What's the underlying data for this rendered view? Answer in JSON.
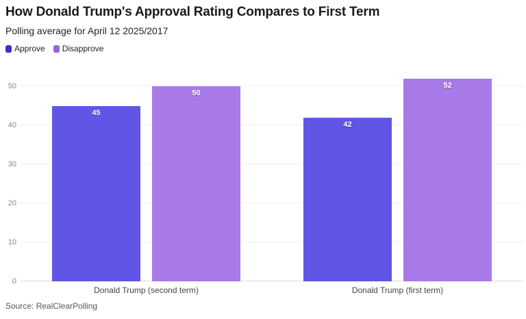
{
  "header": {
    "title": "How Donald Trump's Approval Rating Compares to First Term",
    "subtitle": "Polling average for April 12 2025/2017"
  },
  "legend": {
    "items": [
      {
        "label": "Approve",
        "swatch_color": "#3e2cc9"
      },
      {
        "label": "Disapprove",
        "swatch_color": "#9663de"
      }
    ]
  },
  "chart_data": {
    "type": "bar",
    "title": "How Donald Trump's Approval Rating Compares to First Term",
    "subtitle": "Polling average for April 12 2025/2017",
    "categories": [
      "Donald Trump (second term)",
      "Donald Trump (first term)"
    ],
    "series": [
      {
        "name": "Approve",
        "values": [
          45,
          42
        ],
        "color": "#6155e6"
      },
      {
        "name": "Disapprove",
        "values": [
          50,
          52
        ],
        "color": "#a87ae8"
      }
    ],
    "xlabel": "",
    "ylabel": "",
    "ylim": [
      0,
      55
    ],
    "yticks": [
      0,
      10,
      20,
      30,
      40,
      50
    ],
    "grid": true,
    "legend_position": "top-left",
    "value_labels": true
  },
  "source": {
    "text": "Source: RealClearPolling"
  },
  "colors": {
    "background": "#ffffff",
    "title_text": "#1a1a1a",
    "axis_text": "#878787",
    "category_text": "#434343",
    "gridline": "#f0f0f0",
    "baseline": "#dcdcdc",
    "approve_bar": "#6155e6",
    "disapprove_bar": "#a87ae8"
  }
}
